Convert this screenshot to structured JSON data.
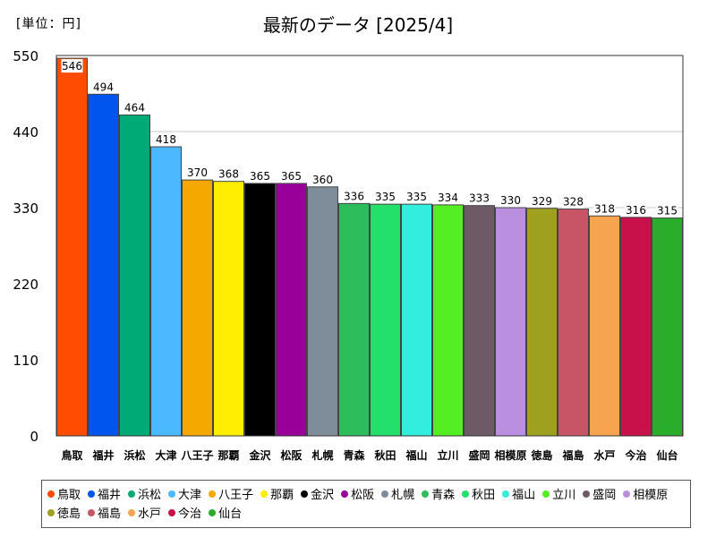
{
  "unit_label": "[単位：円]",
  "chart_data": {
    "type": "bar",
    "title": "最新のデータ [2025/4]",
    "xlabel": "",
    "ylabel": "",
    "ylim": [
      0,
      550
    ],
    "yticks": [
      0,
      110,
      220,
      330,
      440,
      550
    ],
    "grid": true,
    "legend_position": "bottom",
    "categories": [
      "鳥取",
      "福井",
      "浜松",
      "大津",
      "八王子",
      "那覇",
      "金沢",
      "松阪",
      "札幌",
      "青森",
      "秋田",
      "福山",
      "立川",
      "盛岡",
      "相模原",
      "徳島",
      "福島",
      "水戸",
      "今治",
      "仙台"
    ],
    "values": [
      546,
      494,
      464,
      418,
      370,
      368,
      365,
      365,
      360,
      336,
      335,
      335,
      334,
      333,
      330,
      329,
      328,
      318,
      316,
      315
    ],
    "colors": [
      "#ff4c00",
      "#0055ee",
      "#00aa77",
      "#4cb8ff",
      "#f5a800",
      "#ffee00",
      "#000000",
      "#990099",
      "#7f8c99",
      "#2ebd5c",
      "#22e06a",
      "#33eedd",
      "#55ee22",
      "#6e5a66",
      "#bb8fe0",
      "#a0a020",
      "#c85566",
      "#f7a450",
      "#c8104a",
      "#2aad2a"
    ]
  }
}
